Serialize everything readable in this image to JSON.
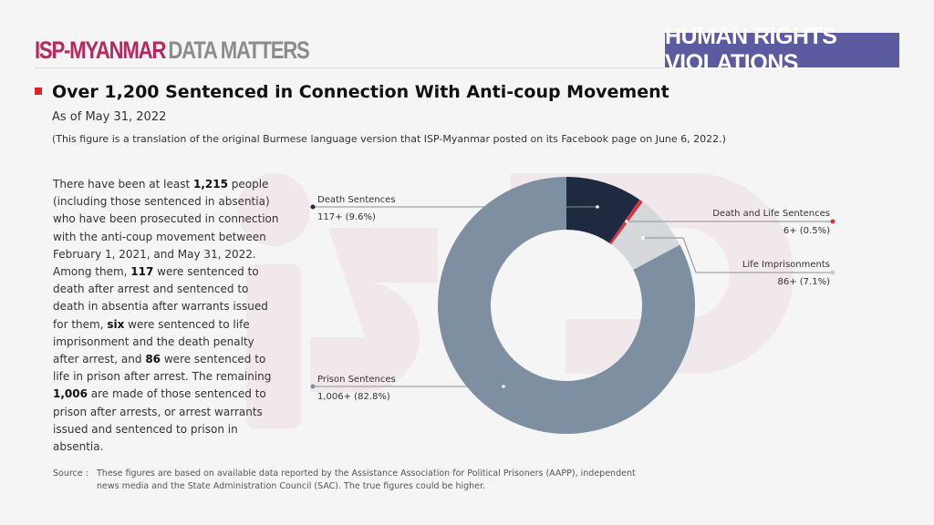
{
  "header": {
    "brand_main": "ISP-MYANMAR",
    "brand_sub": "DATA MATTERS",
    "badge": "HUMAN RIGHTS VIOLATIONS"
  },
  "title": "Over 1,200 Sentenced in Connection With Anti-coup Movement",
  "as_of": "As of May 31, 2022",
  "note": "(This figure is a translation of the original Burmese language version that ISP-Myanmar posted on its Facebook page on June 6, 2022.)",
  "paragraph": [
    {
      "t": "There have been at least ",
      "b": false
    },
    {
      "t": "1,215",
      "b": true
    },
    {
      "t": " people (including those sentenced in absentia) who have been prosecuted in connection with the anti-coup movement between February 1, 2021, and May 31, 2022. Among them, ",
      "b": false
    },
    {
      "t": "117",
      "b": true
    },
    {
      "t": " were sentenced to death after arrest and sentenced to death in absentia after warrants issued for them, ",
      "b": false
    },
    {
      "t": "six",
      "b": true
    },
    {
      "t": " were sentenced to life imprisonment and the death penalty after arrest, and ",
      "b": false
    },
    {
      "t": "86",
      "b": true
    },
    {
      "t": " were sentenced to life in prison after arrest. The remaining ",
      "b": false
    },
    {
      "t": "1,006",
      "b": true
    },
    {
      "t": " are made of those sentenced to prison after arrests, or arrest warrants issued and sentenced to prison in absentia.",
      "b": false
    }
  ],
  "source": {
    "label": "Source :",
    "text": "These figures are based on available data reported by the Assistance Association for Political Prisoners (AAPP), independent news media and the State Administration Council (SAC). The true figures could be higher."
  },
  "chart_data": {
    "type": "pie",
    "donut": true,
    "slices": [
      {
        "name": "Death Sentences",
        "value": 117,
        "label": "117+ (9.6%)",
        "percent": 9.6,
        "color": "#1f2940"
      },
      {
        "name": "Death and Life Sentences",
        "value": 6,
        "label": "6+ (0.5%)",
        "percent": 0.5,
        "color": "#d8333f"
      },
      {
        "name": "Life Imprisonments",
        "value": 86,
        "label": "86+ (7.1%)",
        "percent": 7.1,
        "color": "#d5d9dc"
      },
      {
        "name": "Prison Sentences",
        "value": 1006,
        "label": "1,006+ (82.8%)",
        "percent": 82.8,
        "color": "#7f8fa2"
      }
    ]
  }
}
